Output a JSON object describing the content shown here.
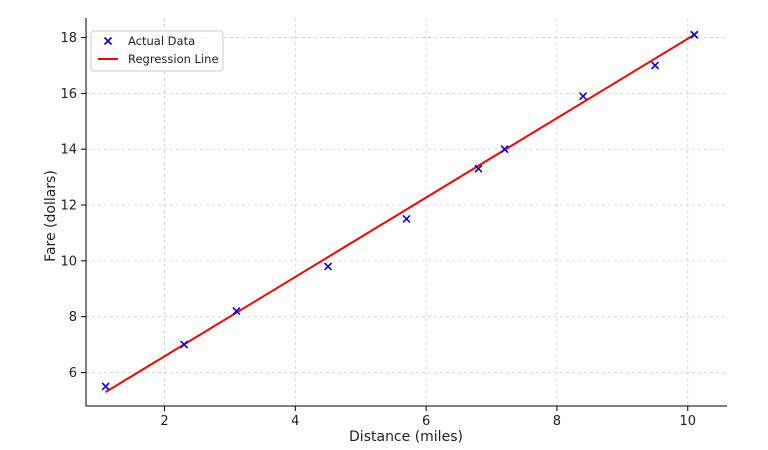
{
  "chart_data": {
    "type": "scatter",
    "title": "",
    "xlabel": "Distance (miles)",
    "ylabel": "Fare (dollars)",
    "xlim": [
      0.8,
      10.6
    ],
    "ylim": [
      4.8,
      18.7
    ],
    "xticks": [
      2,
      4,
      6,
      8,
      10
    ],
    "yticks": [
      6,
      8,
      10,
      12,
      14,
      16,
      18
    ],
    "grid": true,
    "legend_position": "top-left",
    "series": [
      {
        "name": "Actual Data",
        "kind": "scatter",
        "marker": "x",
        "color": "#0000ff",
        "points": [
          {
            "x": 1.1,
            "y": 5.5
          },
          {
            "x": 2.3,
            "y": 7.0
          },
          {
            "x": 3.1,
            "y": 8.2
          },
          {
            "x": 4.5,
            "y": 9.8
          },
          {
            "x": 5.7,
            "y": 11.5
          },
          {
            "x": 6.8,
            "y": 13.3
          },
          {
            "x": 7.2,
            "y": 14.0
          },
          {
            "x": 8.4,
            "y": 15.9
          },
          {
            "x": 9.5,
            "y": 17.0
          },
          {
            "x": 10.1,
            "y": 18.1
          }
        ]
      },
      {
        "name": "Regression Line",
        "kind": "line",
        "color": "#ff0000",
        "points": [
          {
            "x": 1.1,
            "y": 5.3
          },
          {
            "x": 10.1,
            "y": 18.1
          }
        ]
      }
    ]
  }
}
